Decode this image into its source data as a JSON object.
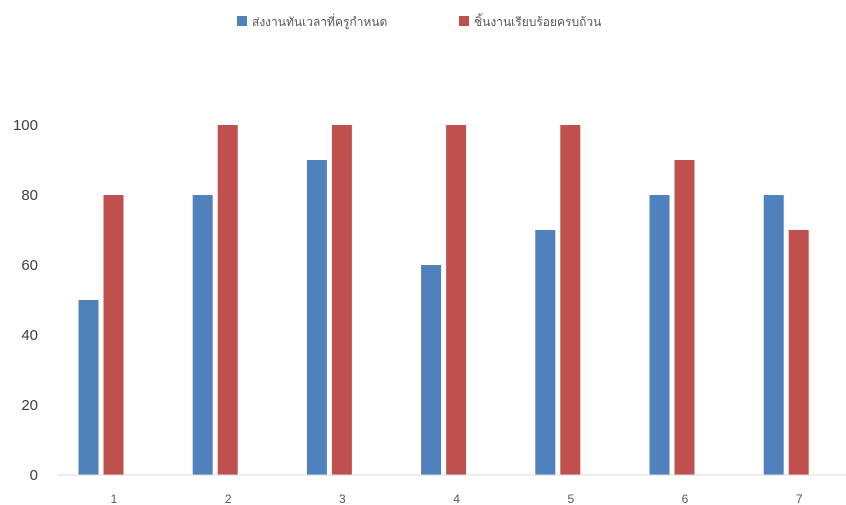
{
  "chart_data": {
    "type": "bar",
    "categories": [
      "1",
      "2",
      "3",
      "4",
      "5",
      "6",
      "7"
    ],
    "series": [
      {
        "name": "ส่งงานทันเวลาที่ครูกำหนด",
        "color": "#4f81bd",
        "values": [
          50,
          80,
          90,
          60,
          70,
          80,
          80
        ]
      },
      {
        "name": "ชิ้นงานเรียบร้อยครบถ้วน",
        "color": "#c0504d",
        "values": [
          80,
          100,
          100,
          100,
          100,
          90,
          70
        ]
      }
    ],
    "ylim": [
      0,
      100
    ],
    "yticks": [
      "0",
      "20",
      "40",
      "60",
      "80",
      "100"
    ],
    "legend_position": "top",
    "grid": false
  }
}
